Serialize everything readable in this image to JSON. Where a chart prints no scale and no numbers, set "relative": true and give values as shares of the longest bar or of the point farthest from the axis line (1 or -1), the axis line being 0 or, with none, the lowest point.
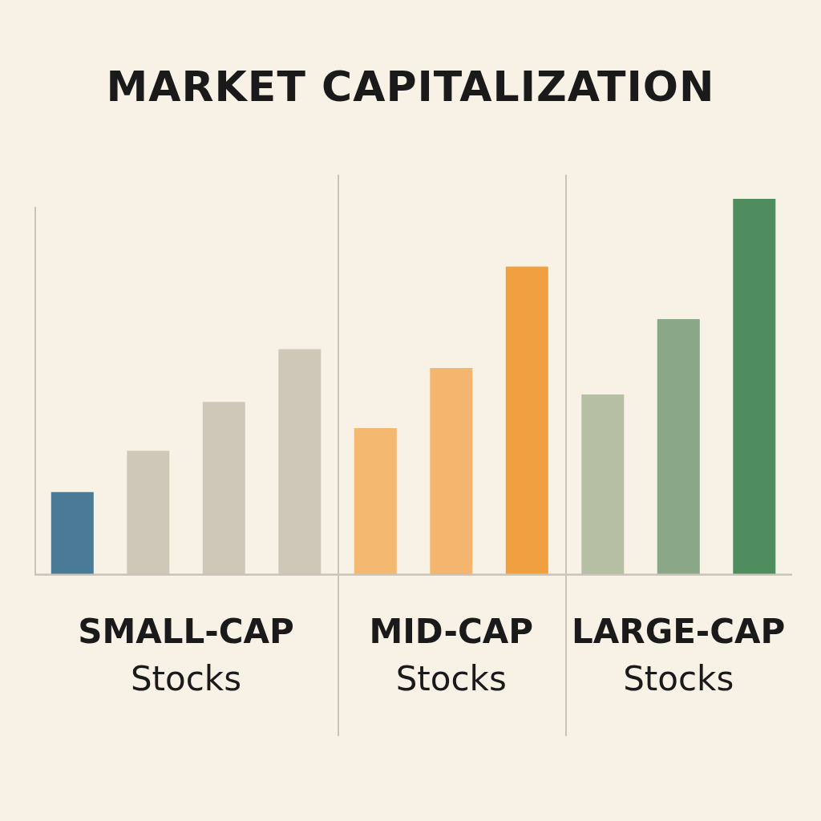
{
  "chart_data": {
    "type": "bar",
    "title": "MARKET CAPITALIZATION",
    "relative": true,
    "grid": false,
    "legend": false,
    "categories": [
      null,
      null,
      null,
      null,
      null,
      null,
      null,
      null,
      null,
      null
    ],
    "values": [
      0.22,
      0.33,
      0.46,
      0.6,
      0.39,
      0.55,
      0.82,
      0.48,
      0.68,
      1
    ],
    "colors": [
      "#4a7a96",
      "#cfc8b8",
      "#cfc8b8",
      "#cfc8b8",
      "#f5b870",
      "#f4b66e",
      "#f0a040",
      "#b6bfa3",
      "#8aa887",
      "#4f8c5e"
    ],
    "annotations": [
      "SMALL-CAP",
      "Stocks",
      "MID-CAP",
      "Stocks",
      "LARGE-CAP",
      "Stocks"
    ]
  }
}
